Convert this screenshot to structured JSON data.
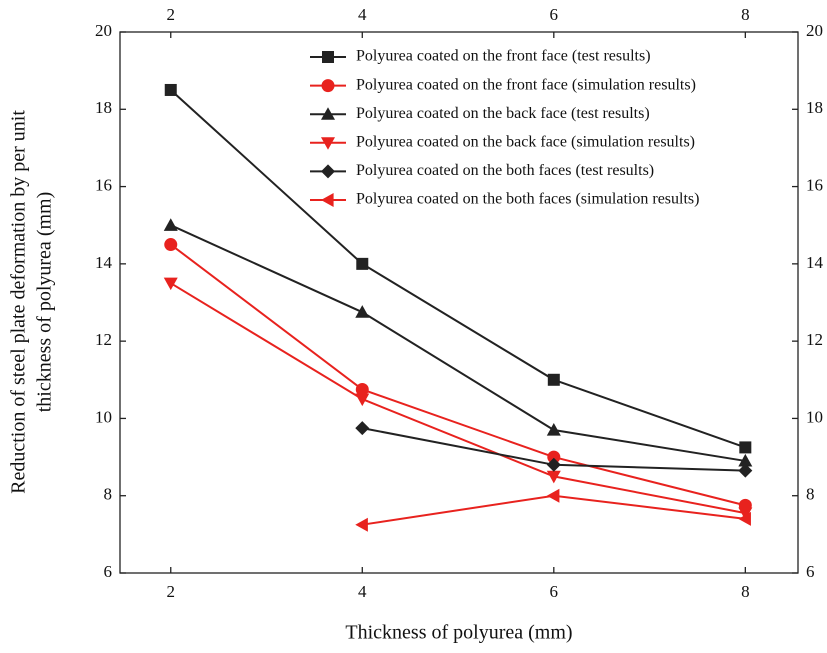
{
  "chart_data": {
    "type": "line",
    "xlabel": "Thickness of polyurea (mm)",
    "ylabel": [
      "Reduction of steel plate deformation by per unit",
      "thickness of polyurea (mm)"
    ],
    "x": [
      2,
      4,
      6,
      8
    ],
    "xlim": [
      1.47,
      8.55
    ],
    "xticks": [
      2,
      4,
      6,
      8
    ],
    "ylim": [
      6,
      20
    ],
    "yticks": [
      6,
      8,
      10,
      12,
      14,
      16,
      18,
      20
    ],
    "grid": false,
    "legend": "upper right",
    "series": [
      {
        "name": "Polyurea coated on the front face (test results)",
        "color": "#222222",
        "marker": "square",
        "values": [
          18.5,
          14.0,
          11.0,
          9.25
        ]
      },
      {
        "name": "Polyurea coated on the front face (simulation results)",
        "color": "#e8221e",
        "marker": "circle",
        "values": [
          14.5,
          10.75,
          9.0,
          7.75
        ]
      },
      {
        "name": "Polyurea coated on the back face (test results)",
        "color": "#222222",
        "marker": "triangle-up",
        "values": [
          15.0,
          12.75,
          9.7,
          8.9
        ]
      },
      {
        "name": "Polyurea coated on the back face (simulation results)",
        "color": "#e8221e",
        "marker": "triangle-down",
        "values": [
          13.5,
          10.5,
          8.5,
          7.55
        ]
      },
      {
        "name": "Polyurea coated on the both faces (test results)",
        "color": "#222222",
        "marker": "diamond",
        "values": [
          null,
          9.75,
          8.8,
          8.65
        ]
      },
      {
        "name": "Polyurea coated on the both faces (simulation results)",
        "color": "#e8221e",
        "marker": "triangle-left",
        "values": [
          null,
          7.25,
          8.0,
          7.4
        ]
      }
    ]
  }
}
